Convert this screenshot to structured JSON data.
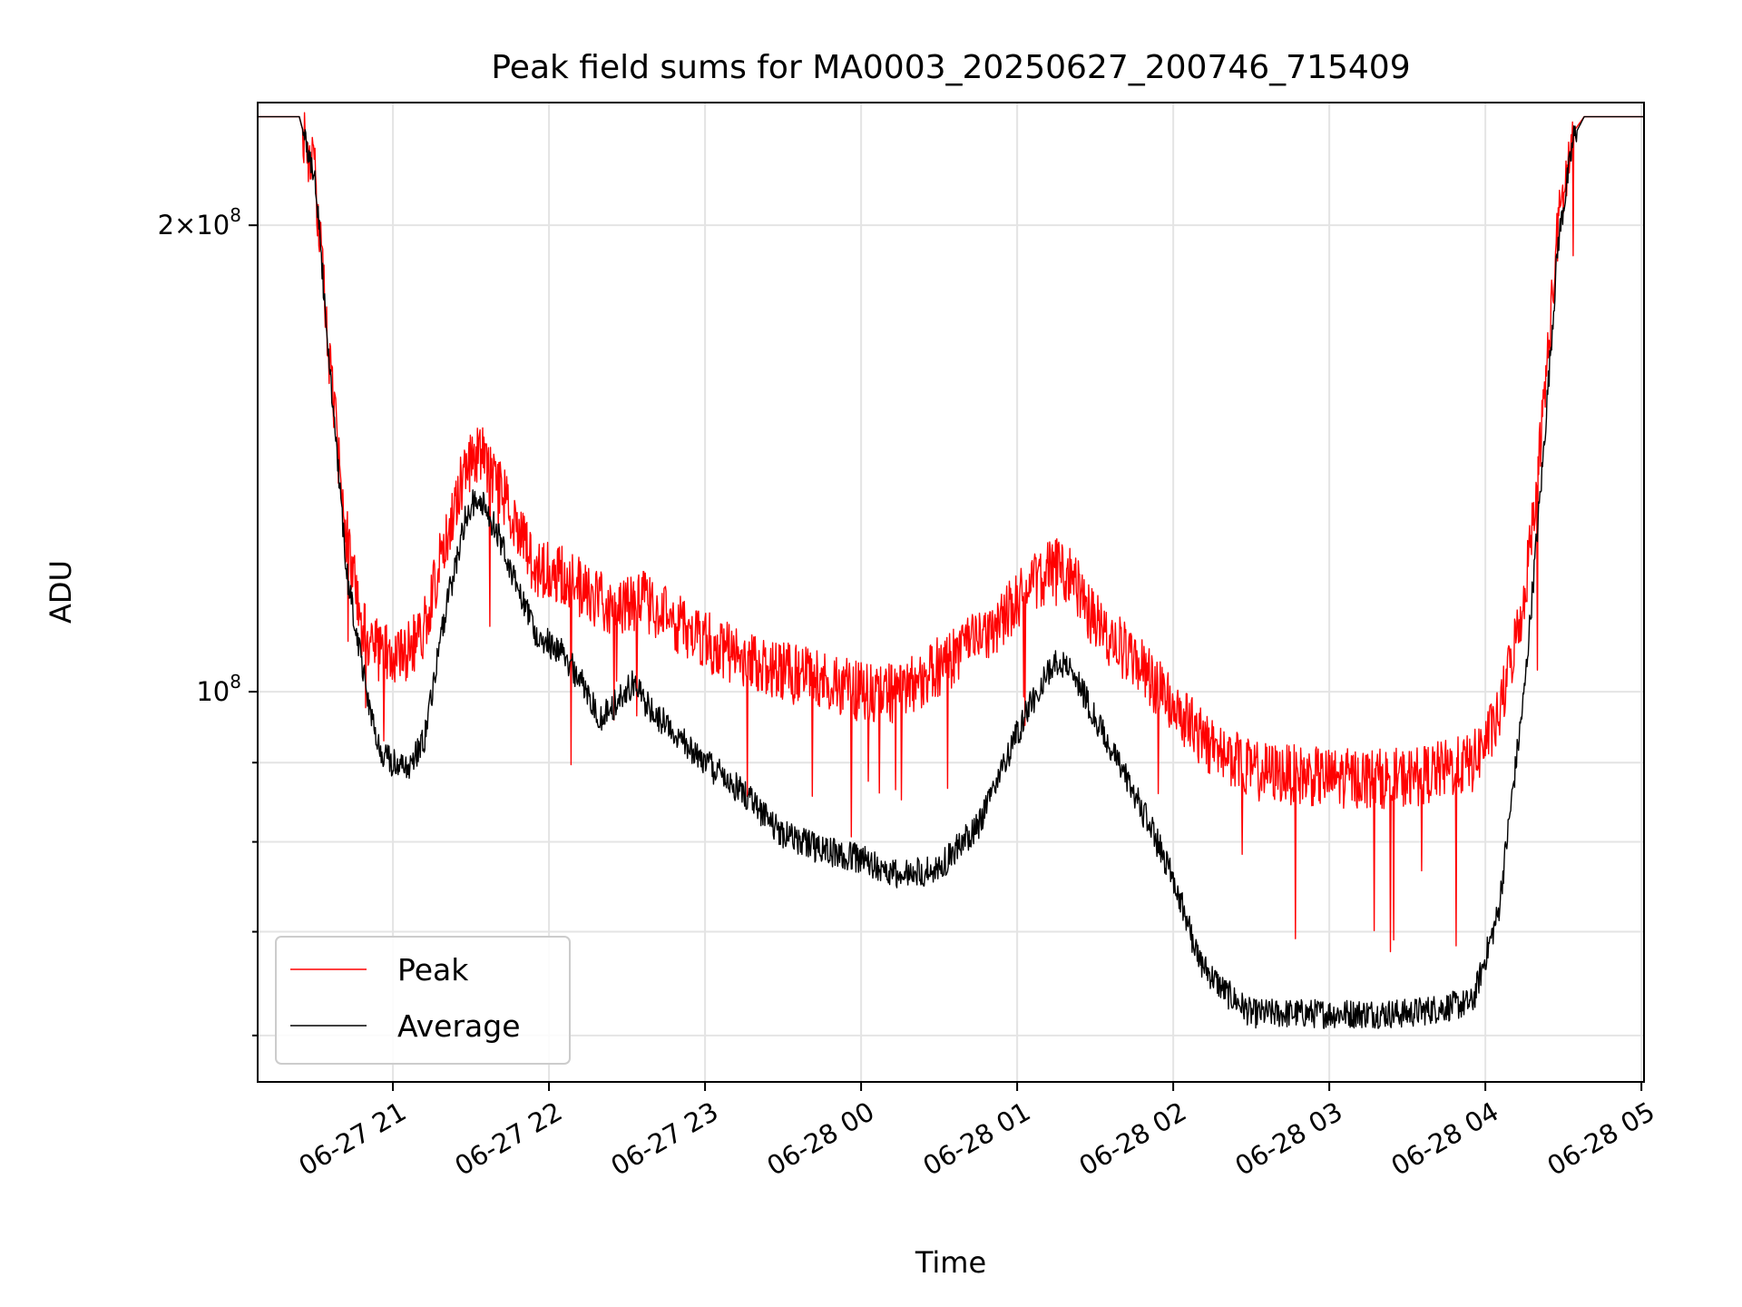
{
  "chart_data": {
    "type": "line",
    "title": "Peak field sums for MA0003_20250627_200746_715409",
    "xlabel": "Time",
    "ylabel": "ADU",
    "x_axis": "time",
    "y_scale": "log",
    "x_range": [
      "06-27 20:08",
      "06-28 05:01"
    ],
    "ylim": [
      56000000,
      240000000
    ],
    "x_ticks": [
      {
        "time": "06-27 21:00",
        "label": "06-27 21"
      },
      {
        "time": "06-27 22:00",
        "label": "06-27 22"
      },
      {
        "time": "06-27 23:00",
        "label": "06-27 23"
      },
      {
        "time": "06-28 00:00",
        "label": "06-28 00"
      },
      {
        "time": "06-28 01:00",
        "label": "06-28 01"
      },
      {
        "time": "06-28 02:00",
        "label": "06-28 02"
      },
      {
        "time": "06-28 03:00",
        "label": "06-28 03"
      },
      {
        "time": "06-28 04:00",
        "label": "06-28 04"
      },
      {
        "time": "06-28 05:00",
        "label": "06-28 05"
      }
    ],
    "y_major_ticks": [
      {
        "value": 100000000,
        "base": "10",
        "exponent": "8"
      },
      {
        "value": 200000000,
        "mantissa": "2",
        "base": "10",
        "exponent": "8"
      }
    ],
    "y_minor_ticks": [
      60000000,
      70000000,
      80000000,
      90000000
    ],
    "grid": true,
    "legend": {
      "position": "lower-left"
    },
    "series": [
      {
        "name": "Peak",
        "color": "#ff0000",
        "points": [
          [
            "06-27 20:08",
            235000000
          ],
          [
            "06-27 20:24",
            235000000
          ],
          [
            "06-27 20:30",
            215000000
          ],
          [
            "06-27 20:36",
            160000000
          ],
          [
            "06-27 20:42",
            127000000
          ],
          [
            "06-27 20:48",
            110000000
          ],
          [
            "06-27 20:55",
            106000000
          ],
          [
            "06-27 21:05",
            106000000
          ],
          [
            "06-27 21:12",
            110000000
          ],
          [
            "06-27 21:20",
            125000000
          ],
          [
            "06-27 21:28",
            140000000
          ],
          [
            "06-27 21:33",
            143000000
          ],
          [
            "06-27 21:40",
            137000000
          ],
          [
            "06-27 21:48",
            128000000
          ],
          [
            "06-27 21:55",
            120000000
          ],
          [
            "06-27 22:05",
            119000000
          ],
          [
            "06-27 22:15",
            116000000
          ],
          [
            "06-27 22:25",
            113000000
          ],
          [
            "06-27 22:35",
            115000000
          ],
          [
            "06-27 22:45",
            112000000
          ],
          [
            "06-27 23:00",
            108000000
          ],
          [
            "06-27 23:15",
            105000000
          ],
          [
            "06-27 23:30",
            103000000
          ],
          [
            "06-27 23:45",
            102000000
          ],
          [
            "06-28 00:00",
            100000000
          ],
          [
            "06-28 00:15",
            100000000
          ],
          [
            "06-28 00:30",
            104000000
          ],
          [
            "06-28 00:45",
            108000000
          ],
          [
            "06-28 00:55",
            112000000
          ],
          [
            "06-28 01:05",
            117000000
          ],
          [
            "06-28 01:15",
            121000000
          ],
          [
            "06-28 01:22",
            118000000
          ],
          [
            "06-28 01:30",
            111000000
          ],
          [
            "06-28 01:45",
            105000000
          ],
          [
            "06-28 02:00",
            98000000
          ],
          [
            "06-28 02:15",
            92000000
          ],
          [
            "06-28 02:30",
            89000000
          ],
          [
            "06-28 03:00",
            88000000
          ],
          [
            "06-28 03:30",
            88000000
          ],
          [
            "06-28 03:55",
            90000000
          ],
          [
            "06-28 04:05",
            96000000
          ],
          [
            "06-28 04:15",
            115000000
          ],
          [
            "06-28 04:22",
            150000000
          ],
          [
            "06-28 04:28",
            200000000
          ],
          [
            "06-28 04:34",
            230000000
          ],
          [
            "06-28 04:38",
            235000000
          ],
          [
            "06-28 05:01",
            235000000
          ]
        ]
      },
      {
        "name": "Average",
        "color": "#000000",
        "points": [
          [
            "06-27 20:08",
            235000000
          ],
          [
            "06-27 20:24",
            235000000
          ],
          [
            "06-27 20:30",
            215000000
          ],
          [
            "06-27 20:36",
            160000000
          ],
          [
            "06-27 20:42",
            120000000
          ],
          [
            "06-27 20:50",
            100000000
          ],
          [
            "06-27 20:55",
            91000000
          ],
          [
            "06-27 21:05",
            89000000
          ],
          [
            "06-27 21:12",
            93000000
          ],
          [
            "06-27 21:20",
            112000000
          ],
          [
            "06-27 21:28",
            130000000
          ],
          [
            "06-27 21:33",
            134000000
          ],
          [
            "06-27 21:40",
            127000000
          ],
          [
            "06-27 21:48",
            117000000
          ],
          [
            "06-27 21:55",
            109000000
          ],
          [
            "06-27 22:05",
            106000000
          ],
          [
            "06-27 22:15",
            100000000
          ],
          [
            "06-27 22:20",
            96000000
          ],
          [
            "06-27 22:25",
            98000000
          ],
          [
            "06-27 22:32",
            101000000
          ],
          [
            "06-27 22:40",
            97000000
          ],
          [
            "06-27 23:00",
            90000000
          ],
          [
            "06-27 23:15",
            86000000
          ],
          [
            "06-27 23:30",
            81000000
          ],
          [
            "06-27 23:45",
            79000000
          ],
          [
            "06-28 00:00",
            78000000
          ],
          [
            "06-28 00:15",
            76000000
          ],
          [
            "06-28 00:30",
            77000000
          ],
          [
            "06-28 00:45",
            82000000
          ],
          [
            "06-28 00:55",
            90000000
          ],
          [
            "06-28 01:05",
            98000000
          ],
          [
            "06-28 01:15",
            105000000
          ],
          [
            "06-28 01:22",
            103000000
          ],
          [
            "06-28 01:30",
            96000000
          ],
          [
            "06-28 01:45",
            86000000
          ],
          [
            "06-28 02:00",
            76000000
          ],
          [
            "06-28 02:10",
            67000000
          ],
          [
            "06-28 02:20",
            64000000
          ],
          [
            "06-28 02:30",
            62000000
          ],
          [
            "06-28 03:00",
            62000000
          ],
          [
            "06-28 03:30",
            62000000
          ],
          [
            "06-28 03:55",
            63000000
          ],
          [
            "06-28 04:05",
            72000000
          ],
          [
            "06-28 04:15",
            100000000
          ],
          [
            "06-28 04:22",
            140000000
          ],
          [
            "06-28 04:28",
            195000000
          ],
          [
            "06-28 04:34",
            228000000
          ],
          [
            "06-28 04:38",
            235000000
          ],
          [
            "06-28 05:01",
            235000000
          ]
        ]
      }
    ]
  }
}
